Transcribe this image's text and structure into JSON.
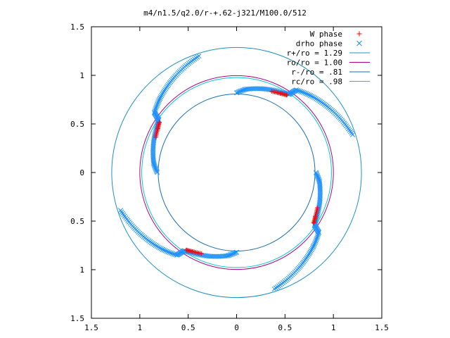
{
  "chart_data": {
    "type": "scatter",
    "title": "m4/n1.5/q2.0/r-+.62-j321/M100.0/512",
    "xlabel": "",
    "ylabel": "",
    "xlim": [
      -1.5,
      1.5
    ],
    "ylim": [
      -1.5,
      1.5
    ],
    "x_ticks": [
      -1.5,
      -1,
      -0.5,
      0,
      0.5,
      1,
      1.5
    ],
    "y_ticks": [
      1.5,
      1,
      0.5,
      0,
      -0.5,
      -1,
      -1.5
    ],
    "x_tick_labels": [
      "1.5",
      "1",
      "0.5",
      "0",
      "0.5",
      "1",
      "1.5"
    ],
    "y_tick_labels": [
      "1.5",
      "1",
      "0.5",
      "0",
      "0.5",
      "1",
      "1.5"
    ],
    "grid": false,
    "legend_position": "top-right",
    "series": [
      {
        "name": "W phase",
        "kind": "points",
        "marker": "plus",
        "color": "#ff0000"
      },
      {
        "name": "drho phase",
        "kind": "points",
        "marker": "x",
        "color": "#1e90ff"
      },
      {
        "name": "r+/ro = 1.29",
        "kind": "circle",
        "radius": 1.29,
        "color": "#1f8fc9"
      },
      {
        "name": "ro/ro = 1.00",
        "kind": "circle",
        "radius": 1.0,
        "color": "#b0008f"
      },
      {
        "name": "r-/ro = .81",
        "kind": "circle",
        "radius": 0.81,
        "color": "#1a6fb8"
      },
      {
        "name": "rc/ro = .98",
        "kind": "circle",
        "radius": 0.98,
        "color": "#00c8d8"
      }
    ],
    "arms": [
      {
        "angle": 90,
        "corotation_jump": 1
      },
      {
        "angle": 180,
        "corotation_jump": 1
      },
      {
        "angle": 270,
        "corotation_jump": 1
      },
      {
        "angle": 0,
        "corotation_jump": 1
      }
    ]
  }
}
